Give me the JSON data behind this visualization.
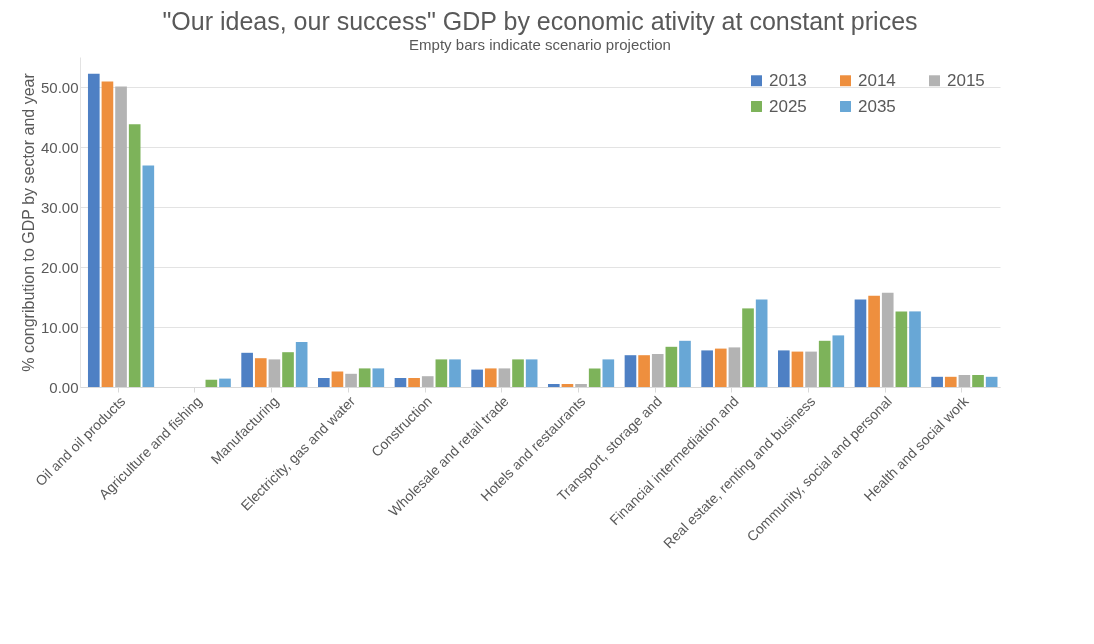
{
  "chart_data": {
    "type": "bar",
    "title": "\"Our ideas, our success\" GDP by economic ativity at constant prices",
    "subtitle": "Empty bars indicate scenario projection",
    "ylabel": "% congribution to GDP by sector and year",
    "categories": [
      "Oil and oil products",
      "Agriculture and fishing",
      "Manufacturing",
      "Electricity, gas and water",
      "Construction",
      "Wholesale and retail trade",
      "Hotels and restaurants",
      "Transport, storage and",
      "Financial intermediation and",
      "Real estate, renting and business",
      "Community, social and personal",
      "Health and social work"
    ],
    "series": [
      {
        "name": "2013",
        "color": "#4e80c4",
        "values": [
          52.2,
          null,
          5.7,
          1.5,
          1.5,
          2.9,
          0.5,
          5.3,
          6.1,
          6.1,
          14.6,
          1.7
        ]
      },
      {
        "name": "2014",
        "color": "#ee8f3e",
        "values": [
          50.9,
          null,
          4.8,
          2.6,
          1.5,
          3.1,
          0.5,
          5.3,
          6.4,
          5.9,
          15.2,
          1.7
        ]
      },
      {
        "name": "2015",
        "color": "#b3b3b3",
        "values": [
          50.1,
          null,
          4.6,
          2.2,
          1.8,
          3.1,
          0.5,
          5.5,
          6.6,
          5.9,
          15.7,
          2.0
        ]
      },
      {
        "name": "2025",
        "color": "#7db35a",
        "values": [
          43.8,
          1.2,
          5.8,
          3.1,
          4.6,
          4.6,
          3.1,
          6.7,
          13.1,
          7.7,
          12.6,
          2.0
        ]
      },
      {
        "name": "2035",
        "color": "#68a7d6",
        "values": [
          36.9,
          1.4,
          7.5,
          3.1,
          4.6,
          4.6,
          4.6,
          7.7,
          14.6,
          8.6,
          12.6,
          1.7
        ]
      }
    ],
    "ylim": [
      0,
      55
    ],
    "yticks": [
      {
        "value": 0,
        "label": "0.00"
      },
      {
        "value": 10,
        "label": "10.00"
      },
      {
        "value": 20,
        "label": "20.00"
      },
      {
        "value": 30,
        "label": "30.00"
      },
      {
        "value": 40,
        "label": "40.00"
      },
      {
        "value": 50,
        "label": "50.00"
      }
    ],
    "grid": "y",
    "legend": "top right"
  }
}
